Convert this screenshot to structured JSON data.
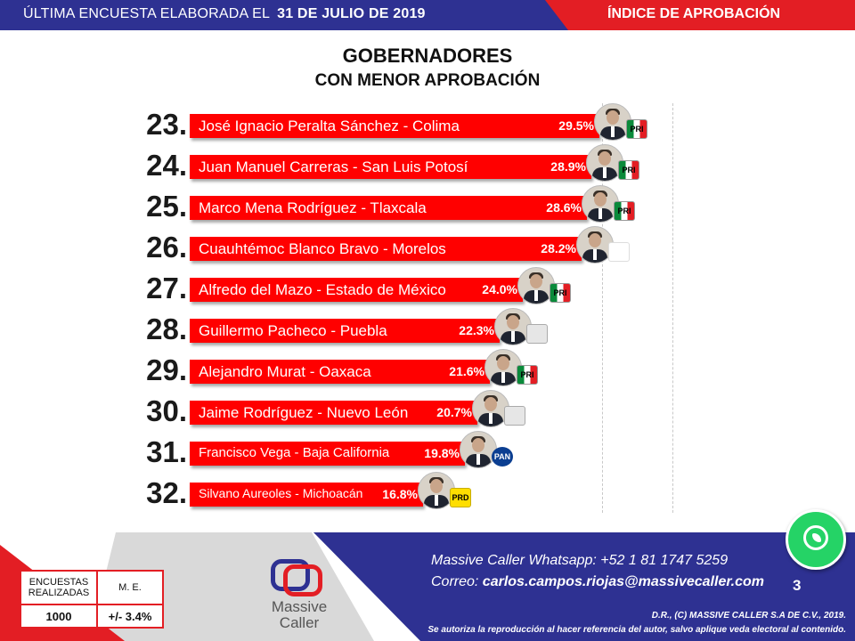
{
  "header": {
    "subtitle_prefix": "ÚLTIMA ENCUESTA ELABORADA EL",
    "date": "31 DE JULIO DE 2019",
    "section": "ÍNDICE DE APROBACIÓN"
  },
  "chart_data": {
    "type": "bar",
    "orientation": "horizontal",
    "title": "GOBERNADORES",
    "subtitle": "CON MENOR APROBACIÓN",
    "categories": [
      "José Ignacio Peralta Sánchez - Colima",
      "Juan Manuel Carreras - San Luis Potosí",
      "Marco Mena Rodríguez - Tlaxcala",
      "Cuauhtémoc Blanco Bravo - Morelos",
      "Alfredo del Mazo - Estado de México",
      "Guillermo Pacheco - Puebla",
      "Alejandro Murat - Oaxaca",
      "Jaime Rodríguez - Nuevo León",
      "Francisco Vega - Baja California",
      "Silvano Aureoles - Michoacán"
    ],
    "ranks": [
      "23.",
      "24.",
      "25.",
      "26.",
      "27.",
      "28.",
      "29.",
      "30.",
      "31.",
      "32."
    ],
    "values": [
      29.5,
      28.9,
      28.6,
      28.2,
      24.0,
      22.3,
      21.6,
      20.7,
      19.8,
      16.8
    ],
    "value_labels": [
      "29.5%",
      "28.9%",
      "28.6%",
      "28.2%",
      "24.0%",
      "22.3%",
      "21.6%",
      "20.7%",
      "19.8%",
      "16.8%"
    ],
    "parties": [
      "PRI",
      "PRI",
      "PRI",
      "",
      "PRI",
      "",
      "PRI",
      "",
      "PAN",
      "PRD"
    ],
    "party_icons": [
      "pri",
      "pri",
      "pri",
      "morena",
      "pri",
      "indep",
      "pri",
      "indep",
      "pan",
      "prd"
    ],
    "bar_color": "#ff0000",
    "grid": true,
    "legend": "none"
  },
  "stats": {
    "surveys_label": "ENCUESTAS REALIZADAS",
    "me_label": "M. E.",
    "surveys_value": "1000",
    "me_value": "+/- 3.4%"
  },
  "footer": {
    "logo_line1": "Massive",
    "logo_line2": "Caller",
    "whatsapp_line": "Massive Caller Whatsapp: +52 1 81 1747 5259",
    "email_prefix": "Correo: ",
    "email": "carlos.campos.riojas@massivecaller.com",
    "page_number": "3",
    "copyright": "D.R., (C) MASSIVE CALLER S.A DE C.V., 2019.",
    "disclaimer": "Se autoriza la reproducción al hacer referencia del autor, salvo aplique veda electoral al contenido."
  },
  "colors": {
    "navy": "#2e3192",
    "red": "#e31e24",
    "bar": "#ff0000",
    "whatsapp": "#25d366"
  }
}
